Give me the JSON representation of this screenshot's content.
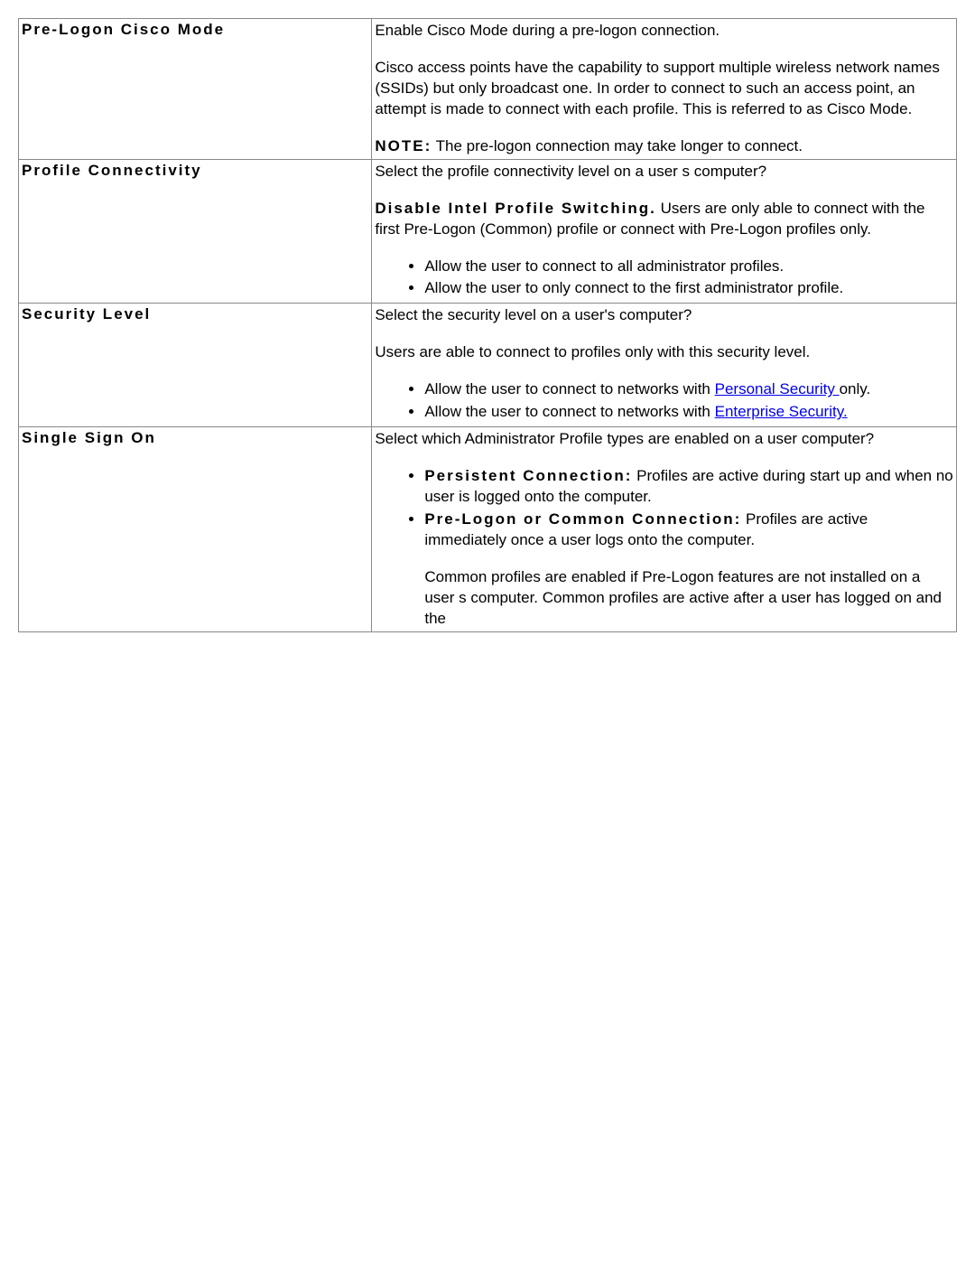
{
  "rows": [
    {
      "label": "Pre-Logon Cisco Mode",
      "p1": "Enable Cisco Mode during a pre-logon connection.",
      "p2": "Cisco access points have the capability to support multiple wireless network names (SSIDs) but only broadcast one. In order to connect to such an access point, an attempt is made to connect with each profile. This is referred to as Cisco Mode.",
      "note_label": "NOTE:",
      "note_text": " The pre-logon connection may take longer to connect."
    },
    {
      "label": "Profile Connectivity",
      "p1": "Select the profile connectivity level on a user s computer?",
      "bold_lead": "Disable Intel Profile Switching.",
      "bold_rest": " Users are only able to connect with the first Pre-Logon (Common) profile or connect with Pre-Logon profiles only.",
      "li1": "Allow the user to connect to all administrator profiles.",
      "li2": "Allow the user to only connect to the first administrator profile."
    },
    {
      "label": "Security Level",
      "p1": "Select the security level on a user's computer?",
      "p2": "Users are able to connect to profiles only with this security level.",
      "li1_pre": "Allow the user to connect to networks with ",
      "li1_link": "Personal Security ",
      "li1_post": "only.",
      "li2_pre": "Allow the user to connect to networks with ",
      "li2_link": "Enterprise Security.  "
    },
    {
      "label": "Single Sign On",
      "p1": "Select which Administrator Profile types are enabled on a user computer?",
      "li1_bold": "Persistent Connection:",
      "li1_rest": " Profiles are active during start up and when no user is logged onto the computer.",
      "li2_bold": "Pre-Logon or Common Connection:",
      "li2_rest": " Profiles are active immediately once a user logs onto the computer.",
      "indent": "Common profiles are enabled if Pre-Logon features are not installed on a user s computer. Common profiles are active after a user has logged on and the"
    }
  ]
}
